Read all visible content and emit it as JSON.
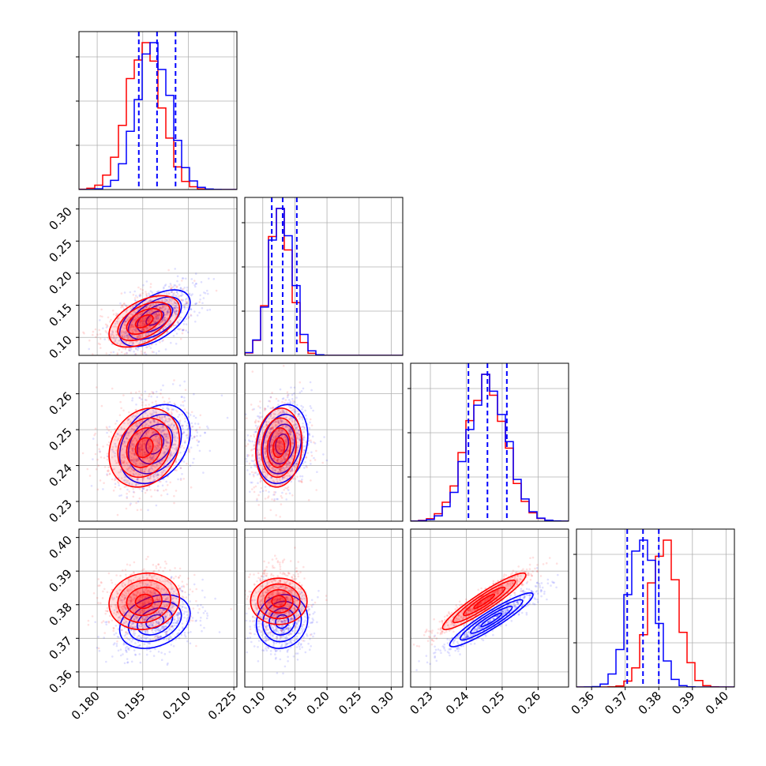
{
  "chart_data": {
    "type": "corner",
    "grid": true,
    "series": [
      {
        "name": "",
        "color": "#ff0000"
      },
      {
        "name": "",
        "color": "#0000ff"
      }
    ],
    "quantile_lines_color": "#0000ff",
    "parameters": [
      {
        "range": [
          0.174,
          0.226
        ],
        "ticks": [
          0.18,
          0.195,
          0.21,
          0.225
        ],
        "tick_labels": [
          "0.180",
          "0.195",
          "0.210",
          "0.225"
        ],
        "quantiles": [
          0.1937,
          0.1997,
          0.2058
        ],
        "hist_peak_red": 0.1955,
        "hist_peak_blue": 0.1985,
        "hist_sigma_red": 0.0057,
        "hist_sigma_blue": 0.0055
      },
      {
        "range": [
          0.072,
          0.318
        ],
        "ticks": [
          0.1,
          0.15,
          0.2,
          0.25,
          0.3
        ],
        "tick_labels": [
          "0.10",
          "0.15",
          "0.20",
          "0.25",
          "0.30"
        ],
        "quantiles": [
          0.114,
          0.131,
          0.153
        ],
        "hist_peak_red": 0.127,
        "hist_peak_blue": 0.129,
        "hist_sigma_red": 0.017,
        "hist_sigma_blue": 0.018
      },
      {
        "range": [
          0.2245,
          0.2685
        ],
        "ticks": [
          0.23,
          0.24,
          0.25,
          0.26
        ],
        "tick_labels": [
          "0.23",
          "0.24",
          "0.25",
          "0.26"
        ],
        "quantiles": [
          0.2406,
          0.2459,
          0.2513
        ],
        "hist_peak_red": 0.2455,
        "hist_peak_blue": 0.246,
        "hist_sigma_red": 0.0055,
        "hist_sigma_blue": 0.0054
      },
      {
        "range": [
          0.3555,
          0.4025
        ],
        "ticks": [
          0.36,
          0.37,
          0.38,
          0.39,
          0.4
        ],
        "tick_labels": [
          "0.36",
          "0.37",
          "0.38",
          "0.39",
          "0.40"
        ],
        "quantiles": [
          0.3706,
          0.3753,
          0.38
        ],
        "hist_peak_red": 0.3815,
        "hist_peak_blue": 0.375,
        "hist_sigma_red": 0.0042,
        "hist_sigma_blue": 0.004
      }
    ],
    "pairs": [
      {
        "row": 1,
        "col": 0,
        "red_center": [
          0.1955,
          0.125
        ],
        "blue_center": [
          0.199,
          0.13
        ],
        "red_sd": [
          0.0058,
          0.02
        ],
        "blue_sd": [
          0.0058,
          0.022
        ],
        "red_rho": 0.5,
        "blue_rho": 0.55
      },
      {
        "row": 2,
        "col": 0,
        "red_center": [
          0.1955,
          0.245
        ],
        "blue_center": [
          0.199,
          0.246
        ],
        "red_sd": [
          0.0058,
          0.0055
        ],
        "blue_sd": [
          0.0058,
          0.0055
        ],
        "red_rho": 0.2,
        "blue_rho": 0.3
      },
      {
        "row": 2,
        "col": 1,
        "red_center": [
          0.125,
          0.245
        ],
        "blue_center": [
          0.13,
          0.246
        ],
        "red_sd": [
          0.018,
          0.0055
        ],
        "blue_sd": [
          0.02,
          0.0055
        ],
        "red_rho": 0.1,
        "blue_rho": 0.2
      },
      {
        "row": 3,
        "col": 0,
        "red_center": [
          0.1955,
          0.381
        ],
        "blue_center": [
          0.199,
          0.375
        ],
        "red_sd": [
          0.0058,
          0.0042
        ],
        "blue_sd": [
          0.0058,
          0.004
        ],
        "red_rho": 0.1,
        "blue_rho": 0.3
      },
      {
        "row": 3,
        "col": 1,
        "red_center": [
          0.125,
          0.381
        ],
        "blue_center": [
          0.13,
          0.375
        ],
        "red_sd": [
          0.018,
          0.0042
        ],
        "blue_sd": [
          0.02,
          0.004
        ],
        "red_rho": 0.0,
        "blue_rho": 0.1
      },
      {
        "row": 3,
        "col": 2,
        "red_center": [
          0.245,
          0.381
        ],
        "blue_center": [
          0.247,
          0.3755
        ],
        "red_sd": [
          0.0058,
          0.0042
        ],
        "blue_sd": [
          0.0058,
          0.004
        ],
        "red_rho": 0.93,
        "blue_rho": 0.93
      }
    ]
  }
}
